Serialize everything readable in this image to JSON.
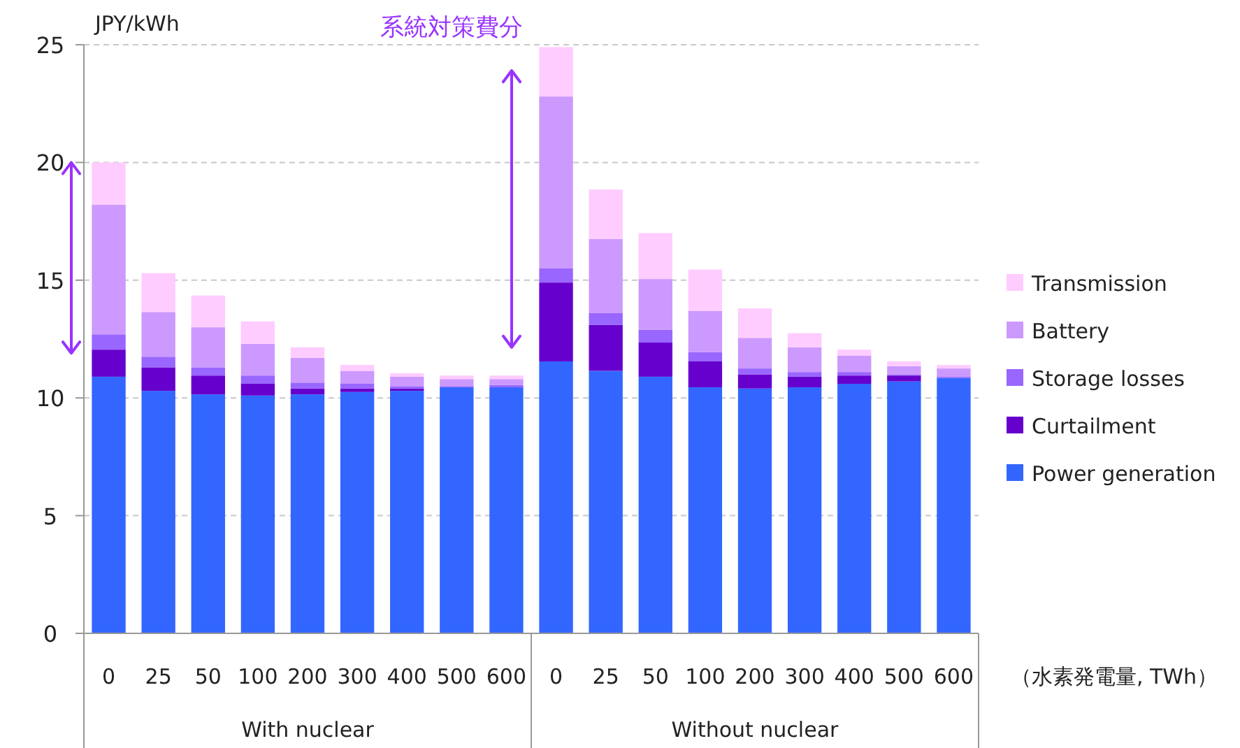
{
  "chart_data": {
    "type": "bar",
    "stacked": true,
    "ylabel": "JPY/kWh",
    "xlabel": "（水素発電量, TWh）",
    "categories": [
      "0",
      "25",
      "50",
      "100",
      "200",
      "300",
      "400",
      "500",
      "600",
      "0",
      "25",
      "50",
      "100",
      "200",
      "300",
      "400",
      "500",
      "600"
    ],
    "series": [
      {
        "name": "Power generation",
        "color": "#3366ff",
        "values": [
          10.9,
          10.3,
          10.15,
          10.1,
          10.15,
          10.25,
          10.3,
          10.45,
          10.45,
          11.55,
          11.15,
          10.9,
          10.45,
          10.4,
          10.45,
          10.6,
          10.7,
          10.85
        ]
      },
      {
        "name": "Curtailment",
        "color": "#6600cc",
        "values": [
          1.15,
          1.0,
          0.8,
          0.5,
          0.25,
          0.15,
          0.1,
          0,
          0,
          3.35,
          1.95,
          1.45,
          1.1,
          0.6,
          0.45,
          0.35,
          0.25,
          0
        ]
      },
      {
        "name": "Storage losses",
        "color": "#9966ff",
        "values": [
          0.65,
          0.45,
          0.35,
          0.35,
          0.25,
          0.2,
          0.1,
          0.05,
          0.1,
          0.6,
          0.5,
          0.55,
          0.4,
          0.25,
          0.2,
          0.15,
          0.05,
          0.05
        ]
      },
      {
        "name": "Battery",
        "color": "#cc99ff",
        "values": [
          5.5,
          1.9,
          1.7,
          1.35,
          1.05,
          0.55,
          0.4,
          0.3,
          0.25,
          7.3,
          3.15,
          2.15,
          1.75,
          1.3,
          1.05,
          0.7,
          0.35,
          0.35
        ]
      },
      {
        "name": "Transmission",
        "color": "#ffccff",
        "values": [
          1.8,
          1.65,
          1.35,
          0.95,
          0.45,
          0.25,
          0.15,
          0.15,
          0.15,
          2.1,
          2.1,
          1.95,
          1.75,
          1.25,
          0.6,
          0.25,
          0.2,
          0.15
        ]
      }
    ],
    "ylim": [
      0,
      25
    ],
    "yticks": [
      0,
      5,
      10,
      15,
      20,
      25
    ],
    "grid": "y",
    "legend": "right",
    "annotations": [
      "With nuclear",
      "Without nuclear",
      "系統対策費分"
    ]
  }
}
